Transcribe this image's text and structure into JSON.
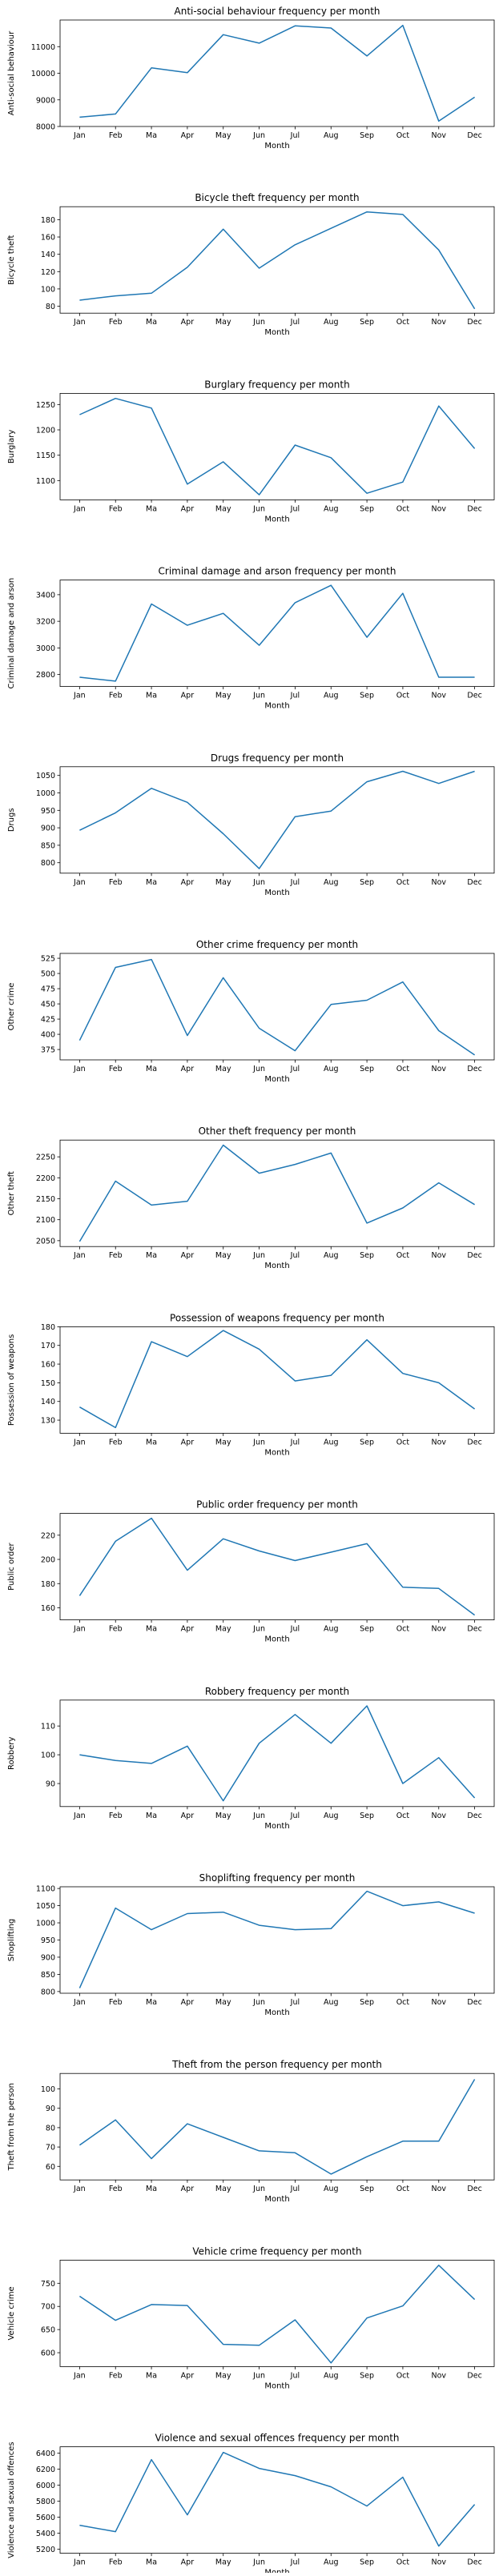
{
  "chart_data": [
    {
      "type": "line",
      "title": "Anti-social behaviour frequency per month",
      "xlabel": "Month",
      "ylabel": "Anti-social behaviour",
      "categories": [
        "Jan",
        "Feb",
        "Ma",
        "Apr",
        "May",
        "Jun",
        "Jul",
        "Aug",
        "Sep",
        "Oct",
        "Nov",
        "Dec"
      ],
      "values": [
        8350,
        8470,
        10200,
        10020,
        11450,
        11130,
        11780,
        11700,
        10650,
        11800,
        8200,
        9100
      ],
      "ylim": [
        8000,
        12000
      ],
      "yticks": [
        8000,
        9000,
        10000,
        11000
      ],
      "grid": false,
      "color": "#1f77b4"
    },
    {
      "type": "line",
      "title": "Bicycle theft frequency per month",
      "xlabel": "Month",
      "ylabel": "Bicycle theft",
      "categories": [
        "Jan",
        "Feb",
        "Ma",
        "Apr",
        "May",
        "Jun",
        "Jul",
        "Aug",
        "Sep",
        "Oct",
        "Nov",
        "Dec"
      ],
      "values": [
        87,
        92,
        95,
        125,
        169,
        124,
        151,
        170,
        189,
        186,
        145,
        77
      ],
      "ylim": [
        72,
        195
      ],
      "yticks": [
        80,
        100,
        120,
        140,
        160,
        180
      ],
      "grid": false,
      "color": "#1f77b4"
    },
    {
      "type": "line",
      "title": "Burglary frequency per month",
      "xlabel": "Month",
      "ylabel": "Burglary",
      "categories": [
        "Jan",
        "Feb",
        "Ma",
        "Apr",
        "May",
        "Jun",
        "Jul",
        "Aug",
        "Sep",
        "Oct",
        "Nov",
        "Dec"
      ],
      "values": [
        1230,
        1262,
        1243,
        1093,
        1137,
        1072,
        1170,
        1145,
        1075,
        1097,
        1247,
        1163
      ],
      "ylim": [
        1062,
        1272
      ],
      "yticks": [
        1100,
        1150,
        1200,
        1250
      ],
      "grid": false,
      "color": "#1f77b4"
    },
    {
      "type": "line",
      "title": "Criminal damage and arson frequency per month",
      "xlabel": "Month",
      "ylabel": "Criminal damage and arson",
      "categories": [
        "Jan",
        "Feb",
        "Ma",
        "Apr",
        "May",
        "Jun",
        "Jul",
        "Aug",
        "Sep",
        "Oct",
        "Nov",
        "Dec"
      ],
      "values": [
        2780,
        2750,
        3330,
        3170,
        3260,
        3020,
        3340,
        3470,
        3080,
        3410,
        2780,
        2780
      ],
      "ylim": [
        2710,
        3510
      ],
      "yticks": [
        2800,
        3000,
        3200,
        3400
      ],
      "grid": false,
      "color": "#1f77b4"
    },
    {
      "type": "line",
      "title": "Drugs frequency per month",
      "xlabel": "Month",
      "ylabel": "Drugs",
      "categories": [
        "Jan",
        "Feb",
        "Ma",
        "Apr",
        "May",
        "Jun",
        "Jul",
        "Aug",
        "Sep",
        "Oct",
        "Nov",
        "Dec"
      ],
      "values": [
        893,
        943,
        1013,
        973,
        883,
        783,
        932,
        948,
        1032,
        1062,
        1027,
        1062
      ],
      "ylim": [
        770,
        1075
      ],
      "yticks": [
        800,
        850,
        900,
        950,
        1000,
        1050
      ],
      "grid": false,
      "color": "#1f77b4"
    },
    {
      "type": "line",
      "title": "Other crime frequency per month",
      "xlabel": "Month",
      "ylabel": "Other crime",
      "categories": [
        "Jan",
        "Feb",
        "Ma",
        "Apr",
        "May",
        "Jun",
        "Jul",
        "Aug",
        "Sep",
        "Oct",
        "Nov",
        "Dec"
      ],
      "values": [
        390,
        510,
        523,
        398,
        493,
        410,
        373,
        449,
        456,
        486,
        406,
        366
      ],
      "ylim": [
        358,
        533
      ],
      "yticks": [
        375,
        400,
        425,
        450,
        475,
        500,
        525
      ],
      "grid": false,
      "color": "#1f77b4"
    },
    {
      "type": "line",
      "title": "Other theft frequency per month",
      "xlabel": "Month",
      "ylabel": "Other theft",
      "categories": [
        "Jan",
        "Feb",
        "Ma",
        "Apr",
        "May",
        "Jun",
        "Jul",
        "Aug",
        "Sep",
        "Oct",
        "Nov",
        "Dec"
      ],
      "values": [
        2048,
        2192,
        2135,
        2144,
        2278,
        2211,
        2232,
        2259,
        2092,
        2128,
        2188,
        2136
      ],
      "ylim": [
        2036,
        2290
      ],
      "yticks": [
        2050,
        2100,
        2150,
        2200,
        2250
      ],
      "grid": false,
      "color": "#1f77b4"
    },
    {
      "type": "line",
      "title": "Possession of weapons frequency per month",
      "xlabel": "Month",
      "ylabel": "Possession of weapons",
      "categories": [
        "Jan",
        "Feb",
        "Ma",
        "Apr",
        "May",
        "Jun",
        "Jul",
        "Aug",
        "Sep",
        "Oct",
        "Nov",
        "Dec"
      ],
      "values": [
        137,
        126,
        172,
        164,
        178,
        168,
        151,
        154,
        173,
        155,
        150,
        136
      ],
      "ylim": [
        123,
        180
      ],
      "yticks": [
        130,
        140,
        150,
        160,
        170,
        180
      ],
      "grid": false,
      "color": "#1f77b4"
    },
    {
      "type": "line",
      "title": "Public order frequency per month",
      "xlabel": "Month",
      "ylabel": "Public order",
      "categories": [
        "Jan",
        "Feb",
        "Ma",
        "Apr",
        "May",
        "Jun",
        "Jul",
        "Aug",
        "Sep",
        "Oct",
        "Nov",
        "Dec"
      ],
      "values": [
        170,
        215,
        234,
        191,
        217,
        207,
        199,
        206,
        213,
        177,
        176,
        154
      ],
      "ylim": [
        150,
        238
      ],
      "yticks": [
        160,
        180,
        200,
        220
      ],
      "grid": false,
      "color": "#1f77b4"
    },
    {
      "type": "line",
      "title": "Robbery frequency per month",
      "xlabel": "Month",
      "ylabel": "Robbery",
      "categories": [
        "Jan",
        "Feb",
        "Ma",
        "Apr",
        "May",
        "Jun",
        "Jul",
        "Aug",
        "Sep",
        "Oct",
        "Nov",
        "Dec"
      ],
      "values": [
        100,
        98,
        97,
        103,
        84,
        104,
        114,
        104,
        117,
        90,
        99,
        85
      ],
      "ylim": [
        82,
        119
      ],
      "yticks": [
        90,
        100,
        110
      ],
      "grid": false,
      "color": "#1f77b4"
    },
    {
      "type": "line",
      "title": "Shoplifting frequency per month",
      "xlabel": "Month",
      "ylabel": "Shoplifting",
      "categories": [
        "Jan",
        "Feb",
        "Ma",
        "Apr",
        "May",
        "Jun",
        "Jul",
        "Aug",
        "Sep",
        "Oct",
        "Nov",
        "Dec"
      ],
      "values": [
        810,
        1043,
        980,
        1027,
        1031,
        993,
        980,
        983,
        1092,
        1050,
        1061,
        1028
      ],
      "ylim": [
        795,
        1105
      ],
      "yticks": [
        800,
        850,
        900,
        950,
        1000,
        1050,
        1100
      ],
      "grid": false,
      "color": "#1f77b4"
    },
    {
      "type": "line",
      "title": "Theft from the person frequency per month",
      "xlabel": "Month",
      "ylabel": "Theft from the person",
      "categories": [
        "Jan",
        "Feb",
        "Ma",
        "Apr",
        "May",
        "Jun",
        "Jul",
        "Aug",
        "Sep",
        "Oct",
        "Nov",
        "Dec"
      ],
      "values": [
        71,
        84,
        64,
        82,
        75,
        68,
        67,
        56,
        65,
        73,
        73,
        105
      ],
      "ylim": [
        53,
        108
      ],
      "yticks": [
        60,
        70,
        80,
        90,
        100
      ],
      "grid": false,
      "color": "#1f77b4"
    },
    {
      "type": "line",
      "title": "Vehicle crime frequency per month",
      "xlabel": "Month",
      "ylabel": "Vehicle crime",
      "categories": [
        "Jan",
        "Feb",
        "Ma",
        "Apr",
        "May",
        "Jun",
        "Jul",
        "Aug",
        "Sep",
        "Oct",
        "Nov",
        "Dec"
      ],
      "values": [
        722,
        670,
        704,
        702,
        618,
        616,
        671,
        578,
        675,
        701,
        789,
        715
      ],
      "ylim": [
        570,
        800
      ],
      "yticks": [
        600,
        650,
        700,
        750
      ],
      "grid": false,
      "color": "#1f77b4"
    },
    {
      "type": "line",
      "title": "Violence and sexual offences frequency per month",
      "xlabel": "Month",
      "ylabel": "Violence and sexual offences",
      "categories": [
        "Jan",
        "Feb",
        "Ma",
        "Apr",
        "May",
        "Jun",
        "Jul",
        "Aug",
        "Sep",
        "Oct",
        "Nov",
        "Dec"
      ],
      "values": [
        5500,
        5420,
        6320,
        5630,
        6410,
        6210,
        6120,
        5980,
        5740,
        6100,
        5240,
        5760
      ],
      "ylim": [
        5150,
        6480
      ],
      "yticks": [
        5200,
        5400,
        5600,
        5800,
        6000,
        6200,
        6400
      ],
      "grid": false,
      "color": "#1f77b4"
    }
  ]
}
